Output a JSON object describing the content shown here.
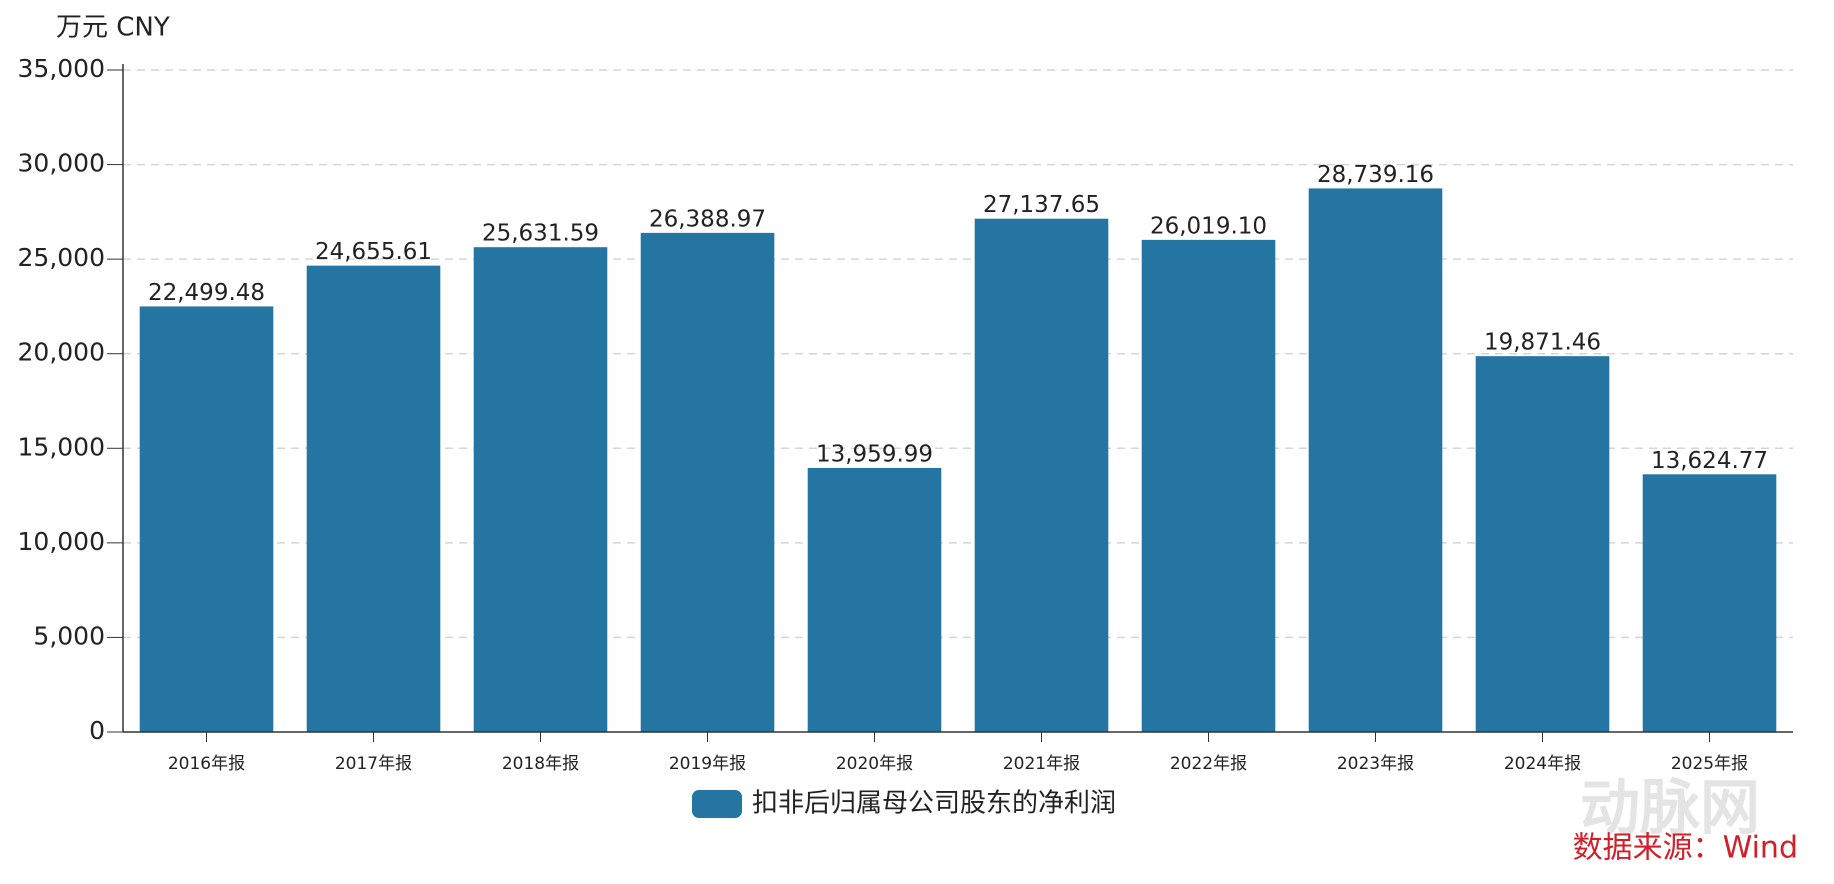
{
  "chart_data": {
    "type": "bar",
    "unit_label": "万元  CNY",
    "categories": [
      "2016年报",
      "2017年报",
      "2018年报",
      "2019年报",
      "2020年报",
      "2021年报",
      "2022年报",
      "2023年报",
      "2024年报",
      "2025年报"
    ],
    "series": [
      {
        "name": "扣非后归属母公司股东的净利润",
        "color": "#2475a2",
        "values": [
          22499.48,
          24655.61,
          25631.59,
          26388.97,
          13959.99,
          27137.65,
          26019.1,
          28739.16,
          19871.46,
          13624.77
        ],
        "value_labels": [
          "22,499.48",
          "24,655.61",
          "25,631.59",
          "26,388.97",
          "13,959.99",
          "27,137.65",
          "26,019.10",
          "28,739.16",
          "19,871.46",
          "13,624.77"
        ]
      }
    ],
    "ylim": [
      0,
      35000
    ],
    "yticks": [
      0,
      {
        "value": 5000,
        "label": "5,000"
      },
      {
        "value": 10000,
        "label": "10,000"
      },
      {
        "value": 15000,
        "label": "15,000"
      },
      {
        "value": 20000,
        "label": "20,000"
      },
      {
        "value": 25000,
        "label": "25,000"
      },
      {
        "value": 30000,
        "label": "30,000"
      },
      {
        "value": 35000,
        "label": "35,000"
      }
    ],
    "grid": true,
    "legend_position": "bottom",
    "source": "数据来源：Wind",
    "watermark": "动脉网"
  }
}
